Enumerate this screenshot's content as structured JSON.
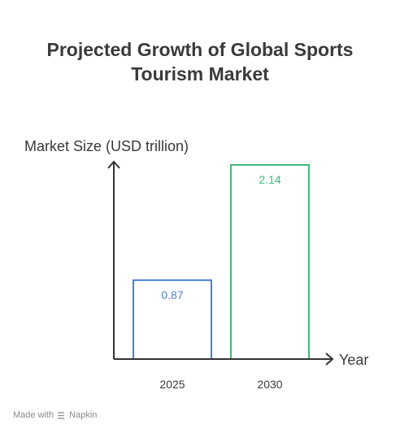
{
  "title_lines": [
    "Projected Growth of Global Sports",
    "Tourism Market"
  ],
  "footer": {
    "made_with": "Made with",
    "brand": "Napkin"
  },
  "chart_data": {
    "type": "bar",
    "title": "Projected Growth of Global Sports Tourism Market",
    "xlabel": "Year",
    "ylabel": "Market Size (USD trillion)",
    "categories": [
      "2025",
      "2030"
    ],
    "values": [
      0.87,
      2.14
    ],
    "value_labels": [
      "0.87",
      "2.14"
    ],
    "colors": [
      "#4a7fd0",
      "#3dbb78"
    ],
    "ylim": [
      0,
      2.14
    ],
    "grid": false
  }
}
